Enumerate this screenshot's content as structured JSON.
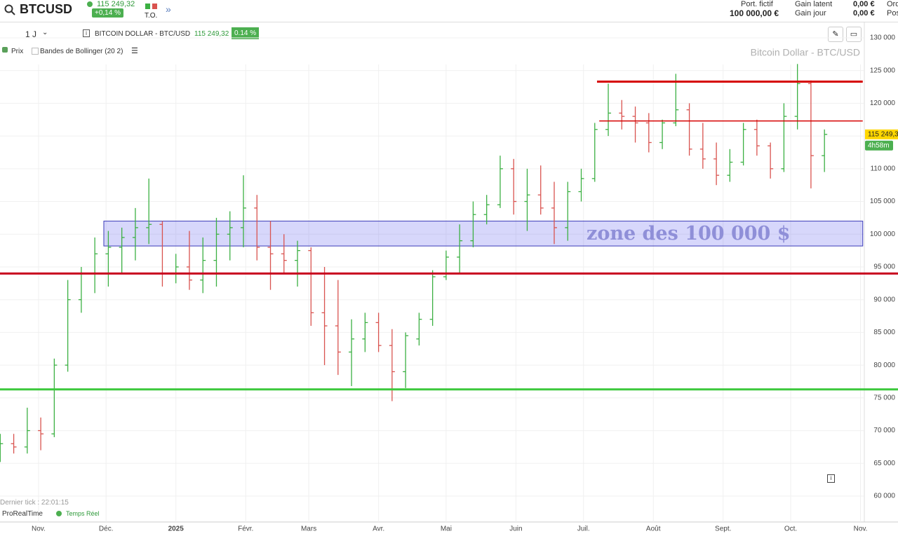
{
  "header": {
    "symbol": "BTCUSD",
    "price": "115 249,32",
    "change": "+0,14 %",
    "to": "T.O.",
    "portfolio_label": "Port. fictif",
    "portfolio_value": "100 000,00 €",
    "latent_label": "Gain latent",
    "latent_value": "0,00 €",
    "day_label": "Gain jour",
    "day_value": "0,00 €",
    "orders": "Ord",
    "positions": "Pos"
  },
  "toolbar": {
    "period": "1 J",
    "instrument": "BITCOIN DOLLAR - BTC/USD",
    "price": "115 249,32",
    "change": "0.14 %",
    "indicator_price": "Prix",
    "indicator_bollinger": "Bandes de Bollinger (20 2)"
  },
  "footer": {
    "last_tick": "Dernier tick : 22:01:15",
    "brand": "ProRealTime",
    "realtime": "Temps Réel"
  },
  "chart_data": {
    "type": "ohlc",
    "watermark": "Bitcoin Dollar - BTC/USD",
    "annotation": "zone des 100 000 $",
    "price_label": "115 249,3",
    "countdown": "4h58m",
    "xlim": [
      -17.1,
      366.7
    ],
    "ylim": [
      56040,
      132350
    ],
    "xticks": [
      {
        "value": 0,
        "label": "Nov."
      },
      {
        "value": 30,
        "label": "Déc."
      },
      {
        "value": 61,
        "label": "2025"
      },
      {
        "value": 92,
        "label": "Févr."
      },
      {
        "value": 120,
        "label": "Mars"
      },
      {
        "value": 151,
        "label": "Avr."
      },
      {
        "value": 181,
        "label": "Mai"
      },
      {
        "value": 212,
        "label": "Juin"
      },
      {
        "value": 242,
        "label": "Juil."
      },
      {
        "value": 273,
        "label": "Août"
      },
      {
        "value": 304,
        "label": "Sept."
      },
      {
        "value": 334,
        "label": "Oct."
      },
      {
        "value": 365,
        "label": "Nov."
      }
    ],
    "yticks": [
      {
        "value": 60000,
        "label": "60 000"
      },
      {
        "value": 65000,
        "label": "65 000"
      },
      {
        "value": 70000,
        "label": "70 000"
      },
      {
        "value": 75000,
        "label": "75 000"
      },
      {
        "value": 80000,
        "label": "80 000"
      },
      {
        "value": 85000,
        "label": "85 000"
      },
      {
        "value": 90000,
        "label": "90 000"
      },
      {
        "value": 95000,
        "label": "95 000"
      },
      {
        "value": 100000,
        "label": "100 000"
      },
      {
        "value": 105000,
        "label": "105 000"
      },
      {
        "value": 110000,
        "label": "110 000"
      },
      {
        "value": 115000,
        "label": "115 000"
      },
      {
        "value": 120000,
        "label": "120 000"
      },
      {
        "value": 125000,
        "label": "125 000"
      },
      {
        "value": 130000,
        "label": "130 000"
      }
    ],
    "grid": true,
    "up_color": "#3cb043",
    "down_color": "#d9534f",
    "x": [
      -17,
      -11,
      -5,
      1,
      7,
      13,
      19,
      25,
      31,
      37,
      43,
      49,
      55,
      61,
      67,
      73,
      79,
      85,
      91,
      97,
      103,
      109,
      115,
      121,
      127,
      133,
      139,
      145,
      151,
      157,
      163,
      169,
      175,
      181,
      187,
      193,
      199,
      205,
      211,
      217,
      223,
      229,
      235,
      241,
      247,
      253,
      259,
      265,
      271,
      277,
      283,
      289,
      295,
      301,
      307,
      313,
      319,
      325,
      331,
      337,
      343,
      349
    ],
    "open": [
      66000,
      68000,
      67500,
      70000,
      69500,
      80000,
      90000,
      94000,
      97000,
      98000,
      99500,
      101000,
      101500,
      94000,
      95000,
      93000,
      96000,
      100000,
      101000,
      104000,
      98000,
      97000,
      96000,
      97500,
      88000,
      86000,
      82000,
      84000,
      86500,
      83000,
      79000,
      84000,
      87000,
      93500,
      96500,
      99000,
      103000,
      104500,
      110000,
      105000,
      106000,
      104000,
      101000,
      106500,
      108500,
      116000,
      118500,
      118000,
      117000,
      114000,
      117000,
      119000,
      113000,
      111500,
      109000,
      111000,
      116000,
      113500,
      110000,
      118000,
      123000,
      112000
    ],
    "high": [
      69500,
      69500,
      73500,
      72000,
      81000,
      93000,
      95000,
      99500,
      100500,
      101000,
      104000,
      108500,
      102000,
      97000,
      100500,
      99500,
      102500,
      103500,
      109000,
      106000,
      102000,
      100000,
      99000,
      98000,
      95000,
      93000,
      87000,
      88000,
      88000,
      85500,
      85000,
      88000,
      94500,
      97500,
      101500,
      105000,
      106000,
      112000,
      111500,
      110000,
      110500,
      108000,
      108000,
      110000,
      117000,
      123000,
      120500,
      119500,
      118500,
      117500,
      124500,
      120000,
      117000,
      114000,
      113000,
      117000,
      117500,
      114000,
      120000,
      126000,
      123500,
      116000
    ],
    "low": [
      65200,
      66500,
      66500,
      67000,
      69000,
      79000,
      88000,
      91000,
      92000,
      94000,
      96000,
      98500,
      92000,
      92500,
      91500,
      91000,
      92000,
      96000,
      98000,
      96000,
      91500,
      94000,
      92000,
      86000,
      80000,
      78500,
      76800,
      82000,
      82000,
      74500,
      76500,
      83000,
      86000,
      93000,
      94000,
      98000,
      101500,
      104000,
      103000,
      100500,
      103000,
      98500,
      99000,
      105000,
      108000,
      115000,
      116000,
      114000,
      112500,
      113000,
      116500,
      112000,
      110000,
      107500,
      108000,
      110500,
      112000,
      108500,
      109500,
      116000,
      107000,
      109500
    ],
    "close": [
      68000,
      67500,
      70000,
      69500,
      80000,
      90000,
      94000,
      97000,
      98000,
      99500,
      101000,
      101500,
      94000,
      95000,
      93000,
      96000,
      100000,
      101000,
      104000,
      98000,
      97000,
      96000,
      97500,
      88000,
      86000,
      82000,
      84000,
      86500,
      83000,
      79000,
      84500,
      87000,
      93500,
      96500,
      99000,
      103000,
      104500,
      110000,
      105000,
      106000,
      104000,
      101000,
      106500,
      108500,
      116000,
      118500,
      118000,
      117000,
      114000,
      117000,
      119000,
      113000,
      111500,
      109000,
      111000,
      116000,
      113500,
      110000,
      118000,
      123000,
      112000,
      115249
    ],
    "zone": {
      "from": 98200,
      "to": 102000,
      "x": [
        29,
        366
      ]
    },
    "levels": [
      {
        "value": 123300,
        "color": "#d60000",
        "x": [
          248,
          366
        ]
      },
      {
        "value": 117300,
        "color": "#d60000",
        "x": [
          249,
          366
        ]
      },
      {
        "value": 94000,
        "color": "#c8001e",
        "x": [
          -17.1,
          366.7
        ]
      },
      {
        "value": 76300,
        "color": "#3cc83c",
        "x": [
          -17.1,
          366.7
        ]
      }
    ]
  }
}
